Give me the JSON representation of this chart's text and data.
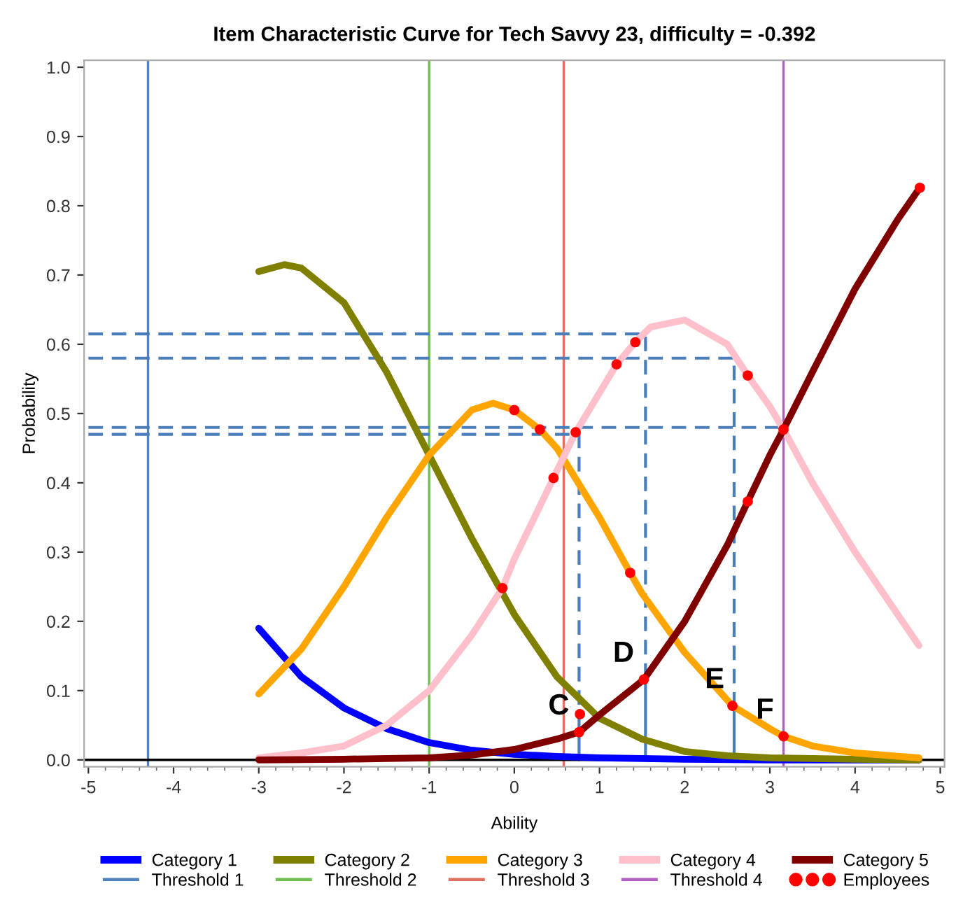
{
  "chart_data": {
    "type": "line",
    "title": "Item Characteristic Curve for Tech Savvy 23, difficulty = -0.392",
    "xlabel": "Ability",
    "ylabel": "Probability",
    "xlim": [
      -5.05,
      5.05
    ],
    "ylim": [
      -0.01,
      1.01
    ],
    "xticks": [
      -5,
      -4,
      -3,
      -2,
      -1,
      0,
      1,
      2,
      3,
      4,
      5
    ],
    "yticks": [
      {
        "value": 0,
        "label": "0.0"
      },
      {
        "value": 0.1,
        "label": "0.1"
      },
      {
        "value": 0.2,
        "label": "0.2"
      },
      {
        "value": 0.3,
        "label": "0.3"
      },
      {
        "value": 0.4,
        "label": "0.4"
      },
      {
        "value": 0.5,
        "label": "0.5"
      },
      {
        "value": 0.6,
        "label": "0.6"
      },
      {
        "value": 0.7,
        "label": "0.7"
      },
      {
        "value": 0.8,
        "label": "0.8"
      },
      {
        "value": 0.9,
        "label": "0.9"
      },
      {
        "value": 1,
        "label": "1.0"
      }
    ],
    "grid": false,
    "legend": "bottom",
    "marker": "none",
    "line_style": "solid",
    "series": [
      {
        "name": "Category 1",
        "color": "#0000ff",
        "x": [
          -3,
          -2.5,
          -2,
          -1.5,
          -1,
          -0.5,
          0,
          0.5,
          1,
          1.5,
          2,
          3,
          4,
          4.75
        ],
        "values": [
          0.19,
          0.12,
          0.075,
          0.045,
          0.025,
          0.014,
          0.008,
          0.005,
          0.003,
          0.002,
          0.001,
          0.0,
          0.0,
          0.0
        ]
      },
      {
        "name": "Category 2",
        "color": "#808000",
        "x": [
          -3,
          -2.7,
          -2.5,
          -2,
          -1.5,
          -1,
          -0.5,
          0,
          0.5,
          1,
          1.5,
          2,
          2.5,
          3,
          4,
          4.75
        ],
        "values": [
          0.705,
          0.715,
          0.71,
          0.66,
          0.56,
          0.44,
          0.32,
          0.21,
          0.12,
          0.06,
          0.03,
          0.012,
          0.006,
          0.003,
          0.001,
          0.0
        ]
      },
      {
        "name": "Category 3",
        "color": "#ffa500",
        "x": [
          -3,
          -2.5,
          -2,
          -1.5,
          -1,
          -0.5,
          -0.25,
          0,
          0.3,
          0.5,
          1,
          1.36,
          1.5,
          2,
          2.56,
          3,
          3.16,
          3.5,
          4,
          4.75
        ],
        "values": [
          0.095,
          0.16,
          0.25,
          0.35,
          0.44,
          0.505,
          0.515,
          0.505,
          0.477,
          0.45,
          0.35,
          0.27,
          0.24,
          0.155,
          0.078,
          0.045,
          0.034,
          0.02,
          0.01,
          0.003
        ]
      },
      {
        "name": "Category 4",
        "color": "#ffc0cb",
        "x": [
          -3,
          -2.5,
          -2,
          -1.5,
          -1,
          -0.5,
          -0.14,
          0,
          0.46,
          0.72,
          1,
          1.2,
          1.42,
          1.6,
          2,
          2.5,
          2.74,
          3,
          3.16,
          3.5,
          4,
          4.5,
          4.75
        ],
        "values": [
          0.003,
          0.01,
          0.02,
          0.05,
          0.1,
          0.18,
          0.248,
          0.29,
          0.407,
          0.473,
          0.53,
          0.571,
          0.603,
          0.625,
          0.635,
          0.6,
          0.555,
          0.51,
          0.477,
          0.4,
          0.3,
          0.21,
          0.165
        ]
      },
      {
        "name": "Category 5",
        "color": "#800000",
        "x": [
          -3,
          -2,
          -1,
          -0.5,
          0,
          0.5,
          0.76,
          1,
          1.52,
          2,
          2.5,
          2.74,
          3,
          3.16,
          3.5,
          4,
          4.5,
          4.76
        ],
        "values": [
          0.0,
          0.001,
          0.003,
          0.007,
          0.015,
          0.03,
          0.04,
          0.065,
          0.116,
          0.2,
          0.31,
          0.373,
          0.44,
          0.477,
          0.56,
          0.68,
          0.78,
          0.826
        ]
      },
      {
        "color": "#4a7ebb",
        "line_style": "dashed",
        "x": [
          -5,
          0.76,
          0.76
        ],
        "values": [
          0.47,
          0.47,
          0.04
        ]
      },
      {
        "color": "#4a7ebb",
        "line_style": "dashed",
        "x": [
          -5,
          1.54,
          1.54
        ],
        "values": [
          0.615,
          0.615,
          0.116
        ]
      },
      {
        "color": "#4a7ebb",
        "line_style": "dashed",
        "x": [
          -5,
          2.58,
          2.58
        ],
        "values": [
          0.58,
          0.58,
          0.078
        ]
      },
      {
        "color": "#4a7ebb",
        "line_style": "dashed",
        "x": [
          -5,
          3.16
        ],
        "values": [
          0.48,
          0.48
        ]
      },
      {
        "color": "#4a7ebb",
        "x": [
          0.76,
          0.76
        ],
        "values": [
          0,
          0.04
        ]
      },
      {
        "color": "#4a7ebb",
        "x": [
          1.54,
          1.54
        ],
        "values": [
          0,
          0.116
        ]
      },
      {
        "color": "#4a7ebb",
        "x": [
          2.58,
          2.58
        ],
        "values": [
          0,
          0.078
        ]
      },
      {
        "name": "Employees",
        "type": "scatter",
        "color": "#ff0000",
        "marker": "circle",
        "x": [
          0.0,
          0.3,
          0.72,
          1.2,
          1.42,
          2.74,
          3.16,
          4.76,
          0.46,
          -0.14,
          1.36,
          2.74,
          0.77,
          0.76,
          1.52,
          2.56,
          3.16
        ],
        "values": [
          0.505,
          0.477,
          0.473,
          0.571,
          0.603,
          0.555,
          0.477,
          0.826,
          0.407,
          0.248,
          0.27,
          0.373,
          0.066,
          0.04,
          0.116,
          0.078,
          0.034
        ]
      }
    ],
    "ref_lines": [
      {
        "axis": "y",
        "value": 0,
        "color": "#000000"
      },
      {
        "axis": "x",
        "value": -4.3,
        "label": "Threshold 1",
        "color": "#4f81bd"
      },
      {
        "axis": "x",
        "value": -1.0,
        "label": "Threshold 2",
        "color": "#70c050"
      },
      {
        "axis": "x",
        "value": 0.58,
        "label": "Threshold 3",
        "color": "#e07060"
      },
      {
        "axis": "x",
        "value": 3.16,
        "label": "Threshold 4",
        "color": "#b060c0"
      }
    ],
    "annotations": [
      {
        "text": "C",
        "x": 0.76,
        "y": 0.04
      },
      {
        "text": "D",
        "x": 1.52,
        "y": 0.116
      },
      {
        "text": "E",
        "x": 2.58,
        "y": 0.078
      },
      {
        "text": "F",
        "x": 3.16,
        "y": 0.034
      }
    ]
  }
}
